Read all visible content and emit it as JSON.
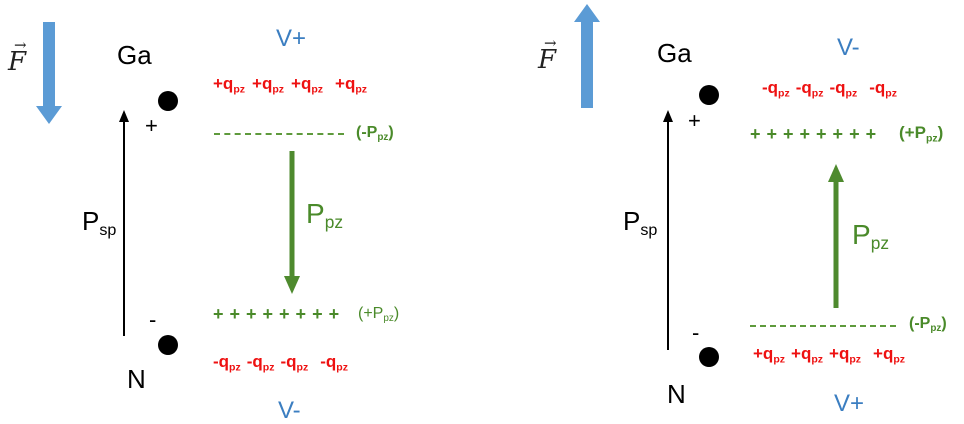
{
  "panels": [
    {
      "id": "left",
      "force_symbol": "F",
      "force_vector_mark": "→",
      "force_direction": "down",
      "top_atom": "Ga",
      "bottom_atom": "N",
      "top_voltage": "V+",
      "bottom_voltage": "V-",
      "top_charge_main": "+q",
      "top_charge_sub": "pz",
      "bottom_charge_main": "-q",
      "bottom_charge_sub": "pz",
      "charge_count": 4,
      "top_layer": {
        "type": "dashes",
        "label_main": "(-P",
        "label_sub": "pz",
        "label_end": ")"
      },
      "bottom_layer": {
        "type": "pluses",
        "symbols": "++++++++",
        "label_main": "(+P",
        "label_sub": "pz",
        "label_end": ")"
      },
      "ppz_main": "P",
      "ppz_sub": "pz",
      "ppz_direction": "down",
      "psp_main": "P",
      "psp_sub": "sp",
      "plus_sign": "+",
      "minus_sign": "-"
    },
    {
      "id": "right",
      "force_symbol": "F",
      "force_vector_mark": "→",
      "force_direction": "up",
      "top_atom": "Ga",
      "bottom_atom": "N",
      "top_voltage": "V-",
      "bottom_voltage": "V+",
      "top_charge_main": "-q",
      "top_charge_sub": "pz",
      "bottom_charge_main": "+q",
      "bottom_charge_sub": "pz",
      "charge_count": 4,
      "top_layer": {
        "type": "pluses",
        "symbols": "++++++++",
        "label_main": "(+P",
        "label_sub": "pz",
        "label_end": ")"
      },
      "bottom_layer": {
        "type": "dashes",
        "label_main": "(-P",
        "label_sub": "pz",
        "label_end": ")"
      },
      "ppz_main": "P",
      "ppz_sub": "pz",
      "ppz_direction": "up",
      "psp_main": "P",
      "psp_sub": "sp",
      "plus_sign": "+",
      "minus_sign": "-"
    }
  ],
  "colors": {
    "force_arrow": "#5B9BD5",
    "ppz_arrow": "#4E8A2E",
    "charge_text": "#EE1111",
    "voltage_text": "#3B7EC1",
    "layer_green": "#4A8A2A"
  }
}
